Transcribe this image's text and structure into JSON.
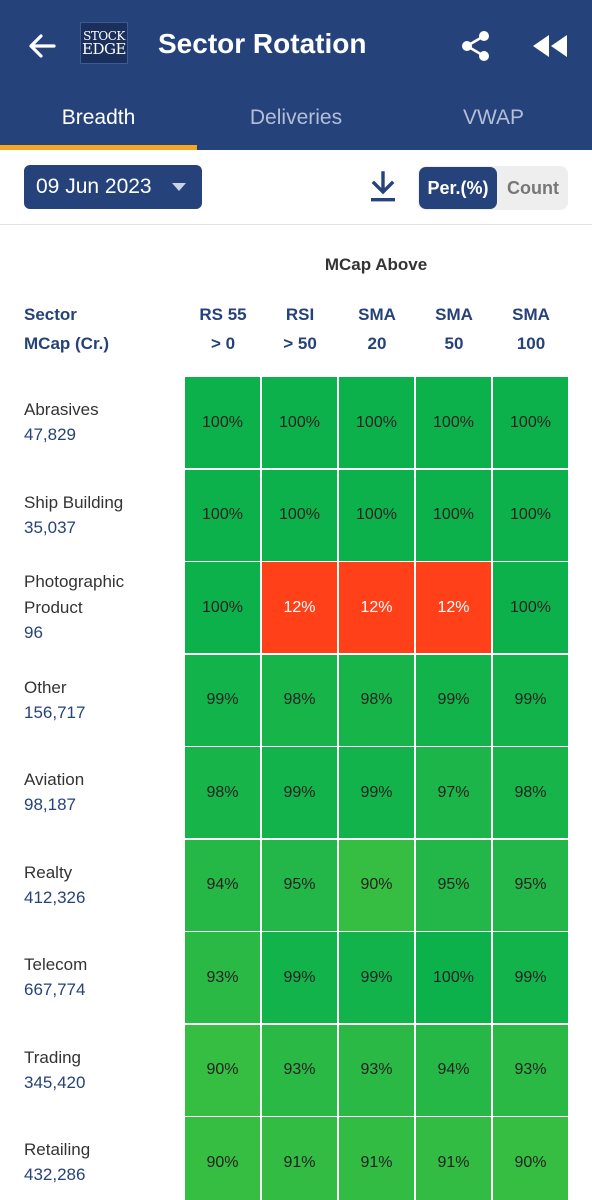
{
  "header": {
    "title": "Sector Rotation",
    "logo_line1": "STOCK",
    "logo_line2": "EDGE",
    "background": "#26427a"
  },
  "tabs": [
    {
      "label": "Breadth",
      "active": true
    },
    {
      "label": "Deliveries",
      "active": false
    },
    {
      "label": "VWAP",
      "active": false
    }
  ],
  "toolbar": {
    "date": "09 Jun 2023",
    "toggle_per": "Per.(%)",
    "toggle_count": "Count",
    "selected": "Per.(%)"
  },
  "table": {
    "group_header": "MCap Above",
    "sector_header_line1": "Sector",
    "sector_header_line2": "MCap (Cr.)",
    "columns": [
      {
        "line1": "RS 55",
        "line2": "> 0"
      },
      {
        "line1": "RSI",
        "line2": "> 50"
      },
      {
        "line1": "SMA",
        "line2": "20"
      },
      {
        "line1": "SMA",
        "line2": "50"
      },
      {
        "line1": "SMA",
        "line2": "100"
      }
    ],
    "rows": [
      {
        "name": "Abrasives",
        "mcap": "47,829",
        "values": [
          "100%",
          "100%",
          "100%",
          "100%",
          "100%"
        ],
        "colors": [
          "#0db14b",
          "#0db14b",
          "#0db14b",
          "#0db14b",
          "#0db14b"
        ]
      },
      {
        "name": "Ship Building",
        "mcap": "35,037",
        "values": [
          "100%",
          "100%",
          "100%",
          "100%",
          "100%"
        ],
        "colors": [
          "#0db14b",
          "#0db14b",
          "#0db14b",
          "#0db14b",
          "#0db14b"
        ]
      },
      {
        "name": "Photographic Product",
        "mcap": "96",
        "values": [
          "100%",
          "12%",
          "12%",
          "12%",
          "100%"
        ],
        "colors": [
          "#0db14b",
          "#ff4019",
          "#ff4019",
          "#ff4019",
          "#0db14b"
        ]
      },
      {
        "name": "Other",
        "mcap": "156,717",
        "values": [
          "99%",
          "98%",
          "98%",
          "99%",
          "99%"
        ],
        "colors": [
          "#12b34b",
          "#17b44a",
          "#17b44a",
          "#12b34b",
          "#12b34b"
        ]
      },
      {
        "name": "Aviation",
        "mcap": "98,187",
        "values": [
          "98%",
          "99%",
          "99%",
          "97%",
          "98%"
        ],
        "colors": [
          "#17b44a",
          "#12b34b",
          "#12b34b",
          "#1cb549",
          "#17b44a"
        ]
      },
      {
        "name": "Realty",
        "mcap": "412,326",
        "values": [
          "94%",
          "95%",
          "90%",
          "95%",
          "95%"
        ],
        "colors": [
          "#26b847",
          "#22b748",
          "#36be43",
          "#22b748",
          "#22b748"
        ]
      },
      {
        "name": "Telecom",
        "mcap": "667,774",
        "values": [
          "93%",
          "99%",
          "99%",
          "100%",
          "99%"
        ],
        "colors": [
          "#2bb946",
          "#12b34b",
          "#12b34b",
          "#0db14b",
          "#12b34b"
        ]
      },
      {
        "name": "Trading",
        "mcap": "345,420",
        "values": [
          "90%",
          "93%",
          "93%",
          "94%",
          "93%"
        ],
        "colors": [
          "#36be43",
          "#2bb946",
          "#2bb946",
          "#26b847",
          "#2bb946"
        ]
      },
      {
        "name": "Retailing",
        "mcap": "432,286",
        "values": [
          "90%",
          "91%",
          "91%",
          "91%",
          "90%"
        ],
        "colors": [
          "#36be43",
          "#32bc44",
          "#32bc44",
          "#32bc44",
          "#36be43"
        ]
      }
    ]
  }
}
